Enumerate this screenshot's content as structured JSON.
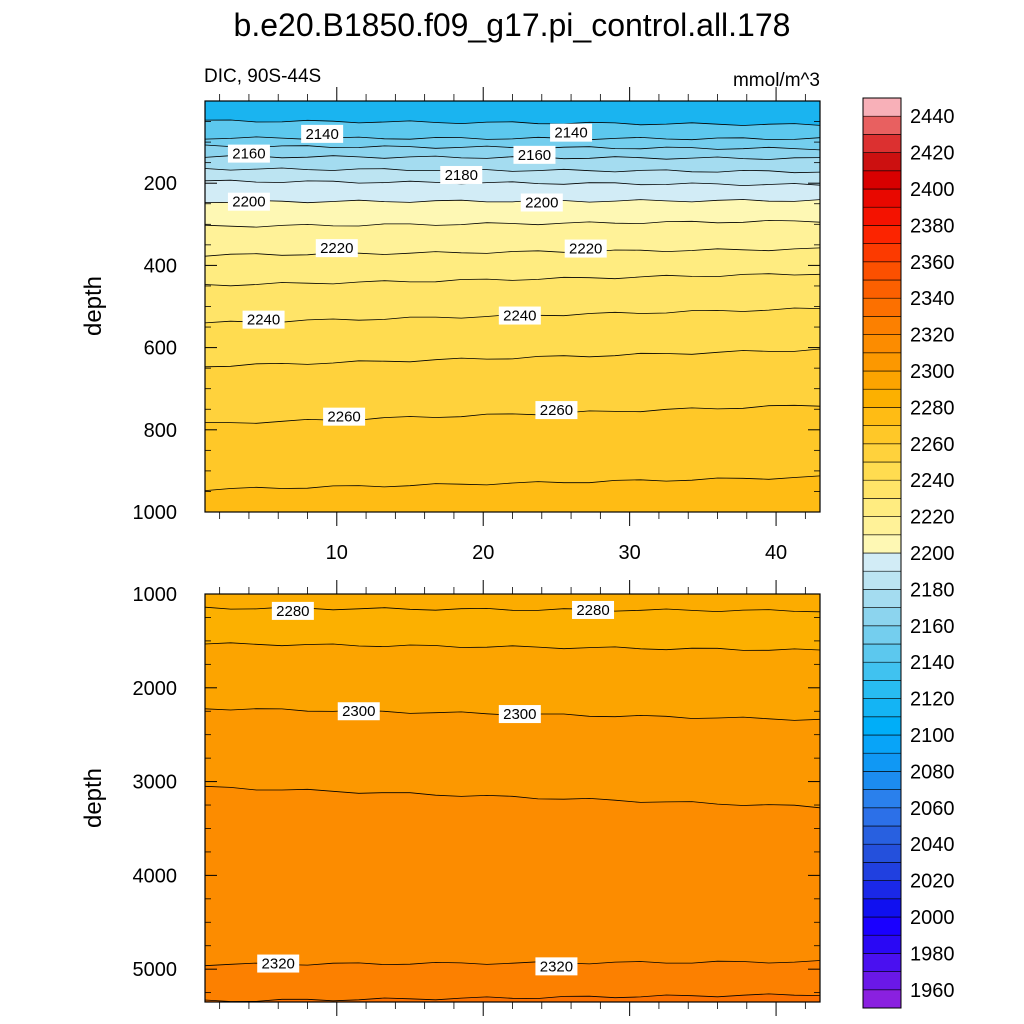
{
  "title": "b.e20.B1850.f09_g17.pi_control.all.178",
  "chart_data": {
    "type": "contour",
    "variable_label": "DIC, 90S-44S",
    "units_label": "mmol/m^3",
    "x": {
      "range": [
        1,
        43
      ],
      "ticks": [
        10,
        20,
        30,
        40
      ],
      "tick_labels": [
        "10",
        "20",
        "30",
        "40"
      ]
    },
    "panels": [
      {
        "name": "upper",
        "ylabel": "depth",
        "ylim": [
          0,
          1000
        ],
        "y_ticks": [
          200,
          400,
          600,
          800,
          1000
        ],
        "y_tick_labels": [
          "200",
          "400",
          "600",
          "800",
          "1000"
        ],
        "surface_color": "#1ab4f0",
        "contours": [
          {
            "level": 2140,
            "depth_west": 48,
            "depth_east": 58
          },
          {
            "level": 2150,
            "depth_west": 90,
            "depth_east": 92
          },
          {
            "level": 2160,
            "depth_west": 110,
            "depth_east": 116
          },
          {
            "level": 2170,
            "depth_west": 135,
            "depth_east": 140
          },
          {
            "level": 2180,
            "depth_west": 165,
            "depth_east": 172
          },
          {
            "level": 2190,
            "depth_west": 195,
            "depth_east": 204
          },
          {
            "level": 2200,
            "depth_west": 245,
            "depth_east": 242
          },
          {
            "level": 2210,
            "depth_west": 305,
            "depth_east": 292
          },
          {
            "level": 2220,
            "depth_west": 375,
            "depth_east": 360
          },
          {
            "level": 2230,
            "depth_west": 448,
            "depth_east": 420
          },
          {
            "level": 2240,
            "depth_west": 540,
            "depth_east": 505
          },
          {
            "level": 2250,
            "depth_west": 645,
            "depth_east": 605
          },
          {
            "level": 2260,
            "depth_west": 785,
            "depth_east": 740
          },
          {
            "level": 2270,
            "depth_west": 945,
            "depth_east": 915
          }
        ],
        "contour_labels": [
          {
            "text": "2140",
            "x": 9.0,
            "depth": 80
          },
          {
            "text": "2140",
            "x": 26.0,
            "depth": 77
          },
          {
            "text": "2160",
            "x": 4.0,
            "depth": 128
          },
          {
            "text": "2160",
            "x": 23.5,
            "depth": 131
          },
          {
            "text": "2180",
            "x": 18.5,
            "depth": 180
          },
          {
            "text": "2200",
            "x": 4.0,
            "depth": 245
          },
          {
            "text": "2200",
            "x": 24.0,
            "depth": 247
          },
          {
            "text": "2220",
            "x": 10.0,
            "depth": 358
          },
          {
            "text": "2220",
            "x": 27.0,
            "depth": 359
          },
          {
            "text": "2240",
            "x": 5.0,
            "depth": 532
          },
          {
            "text": "2240",
            "x": 22.5,
            "depth": 522
          },
          {
            "text": "2260",
            "x": 10.5,
            "depth": 768
          },
          {
            "text": "2260",
            "x": 25.0,
            "depth": 752
          }
        ]
      },
      {
        "name": "lower",
        "ylabel": "depth",
        "ylim": [
          1000,
          5350
        ],
        "y_ticks": [
          1000,
          2000,
          3000,
          4000,
          5000
        ],
        "y_tick_labels": [
          "1000",
          "2000",
          "3000",
          "4000",
          "5000"
        ],
        "surface_color": "#fcac00",
        "contours": [
          {
            "level": 2280,
            "depth_west": 1150,
            "depth_east": 1180
          },
          {
            "level": 2290,
            "depth_west": 1530,
            "depth_east": 1600
          },
          {
            "level": 2300,
            "depth_west": 2220,
            "depth_east": 2340
          },
          {
            "level": 2310,
            "depth_west": 3060,
            "depth_east": 3270
          },
          {
            "level": 2320,
            "depth_west": 4950,
            "depth_east": 4920
          },
          {
            "level": 2330,
            "depth_west": 5340,
            "depth_east": 5270
          }
        ],
        "contour_labels": [
          {
            "text": "2280",
            "x": 7.0,
            "depth": 1180
          },
          {
            "text": "2280",
            "x": 27.5,
            "depth": 1170
          },
          {
            "text": "2300",
            "x": 11.5,
            "depth": 2250
          },
          {
            "text": "2300",
            "x": 22.5,
            "depth": 2280
          },
          {
            "text": "2320",
            "x": 6.0,
            "depth": 4940
          },
          {
            "text": "2320",
            "x": 25.0,
            "depth": 4970
          }
        ]
      }
    ],
    "colorbar": {
      "levels": [
        1960,
        1970,
        1980,
        1990,
        2000,
        2010,
        2020,
        2030,
        2040,
        2050,
        2060,
        2070,
        2080,
        2090,
        2100,
        2110,
        2120,
        2130,
        2140,
        2150,
        2160,
        2170,
        2180,
        2190,
        2200,
        2210,
        2220,
        2230,
        2240,
        2250,
        2260,
        2270,
        2280,
        2290,
        2300,
        2310,
        2320,
        2330,
        2340,
        2350,
        2360,
        2370,
        2380,
        2390,
        2400,
        2410,
        2420,
        2430,
        2440,
        2450
      ],
      "tick_labels": [
        "1960",
        "1980",
        "2000",
        "2020",
        "2040",
        "2060",
        "2080",
        "2100",
        "2120",
        "2140",
        "2160",
        "2180",
        "2200",
        "2220",
        "2240",
        "2260",
        "2280",
        "2300",
        "2320",
        "2340",
        "2360",
        "2380",
        "2400",
        "2420",
        "2440"
      ],
      "colors": [
        "#8a20e0",
        "#6a18e8",
        "#4a10f0",
        "#2a08f4",
        "#1a00ff",
        "#1010f0",
        "#1a28e8",
        "#2040e0",
        "#2450dc",
        "#2860e0",
        "#2c70e8",
        "#2a80ec",
        "#1c8cf0",
        "#1098f4",
        "#08a4f8",
        "#00aef8",
        "#14b4f4",
        "#28bcf2",
        "#40c2f0",
        "#5cc8ee",
        "#74ceee",
        "#8cd4ee",
        "#a4dcf0",
        "#bce4f2",
        "#d2ecf6",
        "#fef8b4",
        "#fff298",
        "#ffec80",
        "#ffe468",
        "#ffdc50",
        "#ffd23c",
        "#ffc828",
        "#ffbc14",
        "#fcb000",
        "#fca400",
        "#fc9800",
        "#fc8c00",
        "#fc8000",
        "#fc7000",
        "#fc6000",
        "#fc5000",
        "#fc3a00",
        "#fc2400",
        "#f41200",
        "#e80800",
        "#d80000",
        "#cc1010",
        "#dc3030",
        "#e86060",
        "#f8b0b8"
      ]
    }
  }
}
